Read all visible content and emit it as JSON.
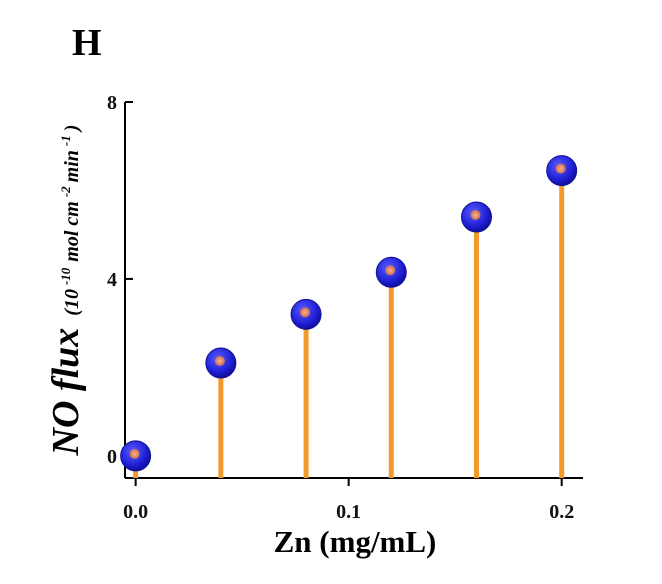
{
  "chart_data": {
    "type": "stem",
    "panel_label": "H",
    "x": [
      0.0,
      0.04,
      0.08,
      0.12,
      0.16,
      0.2
    ],
    "y": [
      0.0,
      2.1,
      3.2,
      4.15,
      5.4,
      6.45
    ],
    "xlabel": "Zn (mg/mL)",
    "ylabel": {
      "main": "NO flux",
      "unit_prefix": "(10",
      "unit_exp1": "-10",
      "unit_mid": "mol cm",
      "unit_exp2": "-2",
      "unit_mid2": "min",
      "unit_exp3": "-1",
      "unit_suffix": ")"
    },
    "xlim": [
      -0.005,
      0.21
    ],
    "ylim": [
      -0.5,
      8
    ],
    "x_ticks": [
      0.0,
      0.1,
      0.2
    ],
    "x_tick_labels": [
      "0.0",
      "0.1",
      "0.2"
    ],
    "y_ticks": [
      0,
      4,
      8
    ],
    "y_tick_labels": [
      "0",
      "4",
      "8"
    ],
    "stem_color": "#f39a2c",
    "marker_color": "#1f1fd4",
    "marker_highlight": "#c86e57",
    "grid": false
  }
}
